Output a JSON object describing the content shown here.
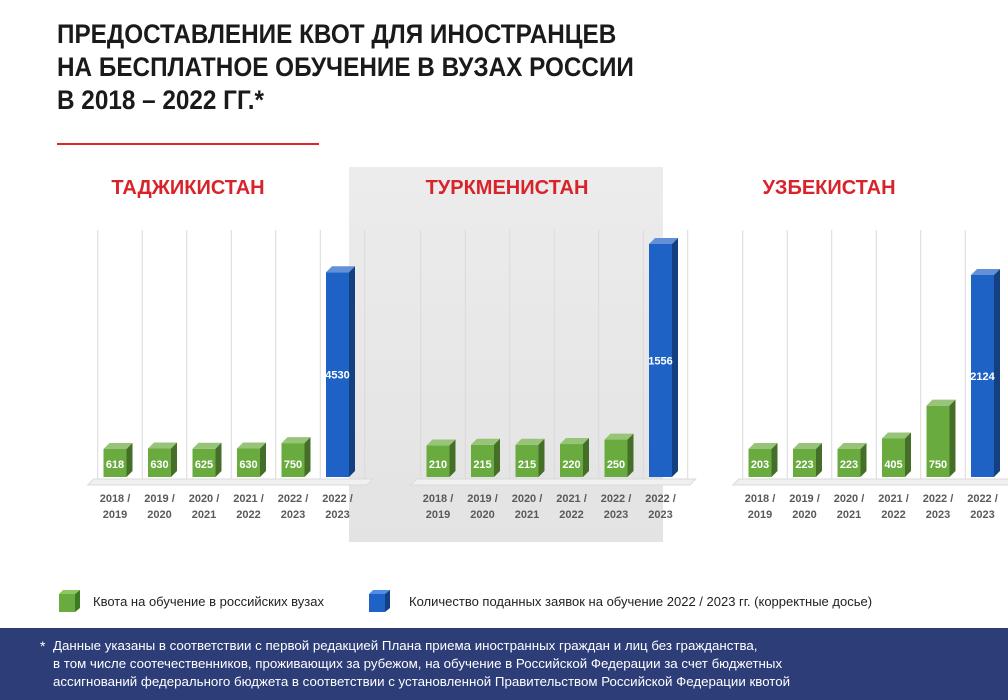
{
  "title_lines": [
    "ПРЕДОСТАВЛЕНИЕ КВОТ ДЛЯ ИНОСТРАНЦЕВ",
    "НА БЕСПЛАТНОЕ ОБУЧЕНИЕ В ВУЗАХ РОССИИ",
    "В 2018 – 2022 ГГ.*"
  ],
  "colors": {
    "accent_red": "#d8232a",
    "quota_green": "#6aab3f",
    "applications_blue": "#1f62c6",
    "footnote_bg": "#2d3d77"
  },
  "chart_data": [
    {
      "type": "bar",
      "title": "ТАДЖИКИСТАН",
      "categories": [
        "2018 / 2019",
        "2019 / 2020",
        "2020 / 2021",
        "2021 / 2022",
        "2022 / 2023",
        "2022 / 2023"
      ],
      "values": [
        618,
        630,
        625,
        630,
        750,
        4530
      ],
      "series_index": [
        0,
        0,
        0,
        0,
        0,
        1
      ],
      "ylim": [
        0,
        4800
      ],
      "grid": true
    },
    {
      "type": "bar",
      "title": "ТУРКМЕНИСТАН",
      "categories": [
        "2018 / 2019",
        "2019 / 2020",
        "2020 / 2021",
        "2021 / 2022",
        "2022 / 2023",
        "2022 / 2023"
      ],
      "values": [
        210,
        215,
        215,
        220,
        250,
        1556
      ],
      "series_index": [
        0,
        0,
        0,
        0,
        0,
        1
      ],
      "ylim": [
        0,
        1556
      ],
      "grid": true
    },
    {
      "type": "bar",
      "title": "УЗБЕКИСТАН",
      "categories": [
        "2018 / 2019",
        "2019 / 2020",
        "2020 / 2021",
        "2021 / 2022",
        "2022 / 2023",
        "2022 / 2023"
      ],
      "values": [
        203,
        223,
        223,
        405,
        750,
        2124
      ],
      "series_index": [
        0,
        0,
        0,
        0,
        0,
        1
      ],
      "ylim": [
        0,
        2124
      ],
      "grid": true
    }
  ],
  "legend": [
    {
      "label": "Квота на обучение в российских вузах",
      "color": "#6aab3f"
    },
    {
      "label": "Количество поданных заявок на обучение 2022 / 2023 гг. (корректные досье)",
      "color": "#1f62c6"
    }
  ],
  "footnote": {
    "star": "*",
    "lines": [
      "Данные указаны в соответствии с первой редакцией Плана приема иностранных граждан и лиц без гражданства,",
      "в том числе соотечественников, проживающих за рубежом, на обучение в Российской Федерации за счет бюджетных",
      "ассигнований федерального бюджета в соответствии с установленной Правительством Российской Федерации квотой"
    ]
  }
}
